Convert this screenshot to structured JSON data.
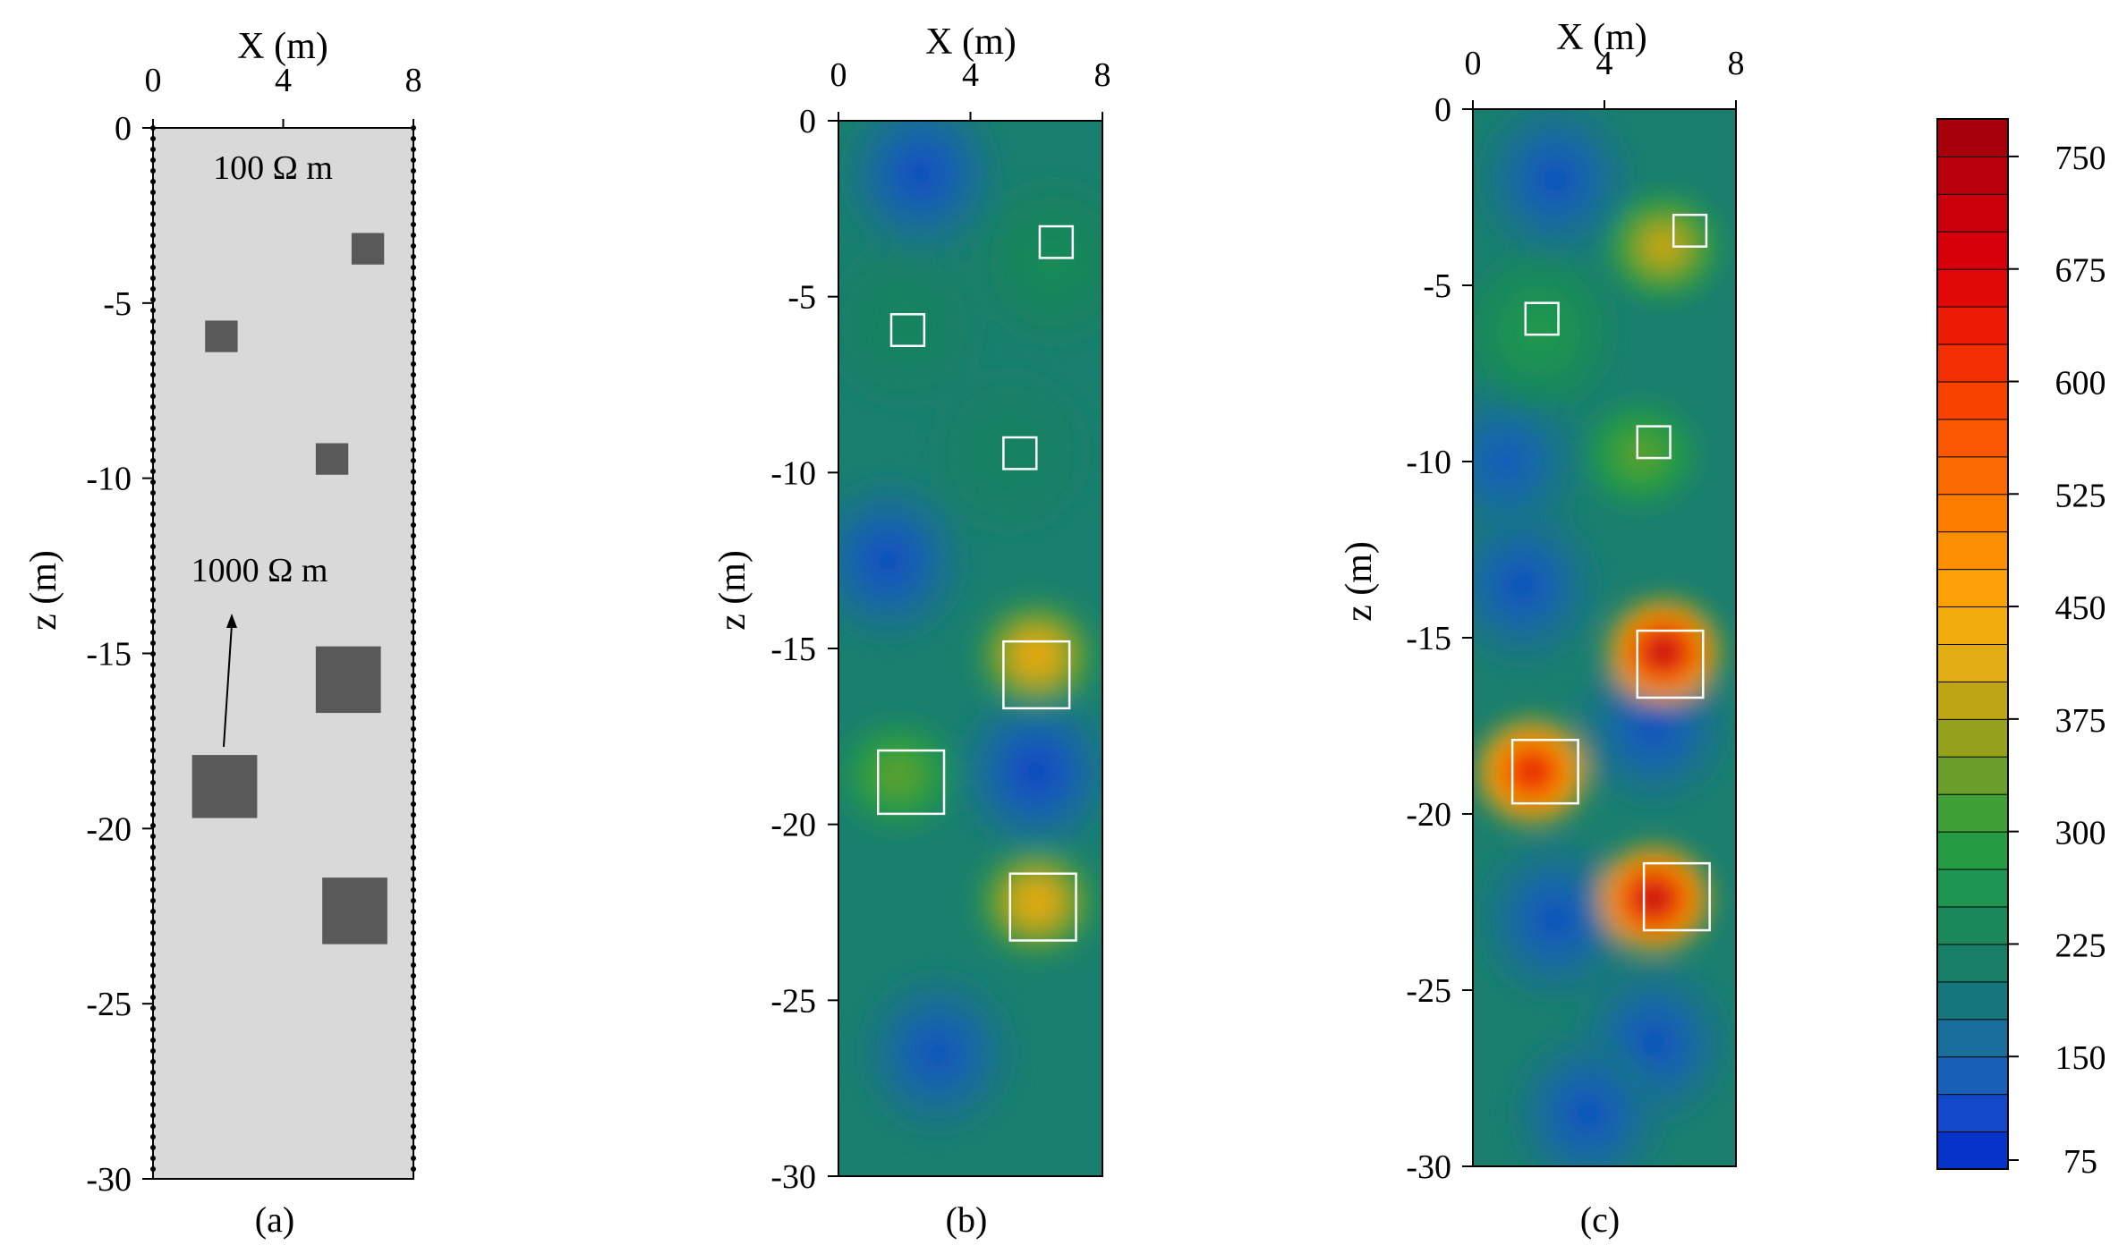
{
  "panels": [
    {
      "id": "a",
      "caption": "(a)",
      "x_label": "X (m)",
      "y_label": "z (m)",
      "x_ticks": [
        "0",
        "4",
        "8"
      ],
      "y_ticks": [
        "0",
        "-5",
        "-10",
        "-15",
        "-20",
        "-25",
        "-30"
      ],
      "background_text": "100 Ω m",
      "block_text": "1000 Ω m",
      "background_color": "#d9d9d9",
      "block_color": "#595959"
    },
    {
      "id": "b",
      "caption": "(b)",
      "x_label": "X (m)",
      "y_label": "z (m)",
      "x_ticks": [
        "0",
        "4",
        "8"
      ],
      "y_ticks": [
        "0",
        "-5",
        "-10",
        "-15",
        "-20",
        "-25",
        "-30"
      ]
    },
    {
      "id": "c",
      "caption": "(c)",
      "x_label": "X (m)",
      "y_label": "z (m)",
      "x_ticks": [
        "0",
        "4",
        "8"
      ],
      "y_ticks": [
        "0",
        "-5",
        "-10",
        "-15",
        "-20",
        "-25",
        "-30"
      ]
    }
  ],
  "colorbar": {
    "labels": [
      "750",
      "675",
      "600",
      "525",
      "450",
      "375",
      "300",
      "225",
      "150",
      "75"
    ]
  },
  "chart_data": {
    "type": "heatmap",
    "x_range": [
      0,
      8
    ],
    "z_range": [
      -30,
      0
    ],
    "value_range": [
      75,
      775
    ],
    "blocks": [
      {
        "x0": 6.1,
        "x1": 7.1,
        "z0": -3.0,
        "z1": -3.9
      },
      {
        "x0": 1.6,
        "x1": 2.6,
        "z0": -5.5,
        "z1": -6.4
      },
      {
        "x0": 5.0,
        "x1": 6.0,
        "z0": -9.0,
        "z1": -9.9
      },
      {
        "x0": 5.0,
        "x1": 7.0,
        "z0": -14.8,
        "z1": -16.7
      },
      {
        "x0": 1.2,
        "x1": 3.2,
        "z0": -17.9,
        "z1": -19.7
      },
      {
        "x0": 5.2,
        "x1": 7.2,
        "z0": -21.4,
        "z1": -23.3
      }
    ],
    "field_b": [
      {
        "x": 2.5,
        "z": -1.5,
        "v": 100
      },
      {
        "x": 1.5,
        "z": -12.5,
        "v": 100
      },
      {
        "x": 6.0,
        "z": -18.5,
        "v": 90
      },
      {
        "x": 3.0,
        "z": -26.5,
        "v": 110
      },
      {
        "x": 6.0,
        "z": -15.2,
        "v": 460
      },
      {
        "x": 6.0,
        "z": -22.2,
        "v": 455
      },
      {
        "x": 1.8,
        "z": -18.6,
        "v": 345
      },
      {
        "x": 6.5,
        "z": -4.0,
        "v": 250
      },
      {
        "x": 2.0,
        "z": -5.8,
        "v": 230
      },
      {
        "x": 5.2,
        "z": -9.4,
        "v": 225
      }
    ],
    "field_c": [
      {
        "x": 2.5,
        "z": -2.0,
        "v": 110
      },
      {
        "x": 1.0,
        "z": -10.0,
        "v": 120
      },
      {
        "x": 1.5,
        "z": -13.5,
        "v": 110
      },
      {
        "x": 5.5,
        "z": -17.5,
        "v": 110
      },
      {
        "x": 2.5,
        "z": -23.0,
        "v": 110
      },
      {
        "x": 5.5,
        "z": -26.5,
        "v": 110
      },
      {
        "x": 3.5,
        "z": -28.5,
        "v": 110
      },
      {
        "x": 5.8,
        "z": -3.9,
        "v": 410
      },
      {
        "x": 2.0,
        "z": -6.3,
        "v": 285
      },
      {
        "x": 5.1,
        "z": -9.8,
        "v": 340
      },
      {
        "x": 5.8,
        "z": -15.4,
        "v": 760
      },
      {
        "x": 1.8,
        "z": -18.8,
        "v": 695
      },
      {
        "x": 5.5,
        "z": -22.4,
        "v": 760
      }
    ]
  }
}
